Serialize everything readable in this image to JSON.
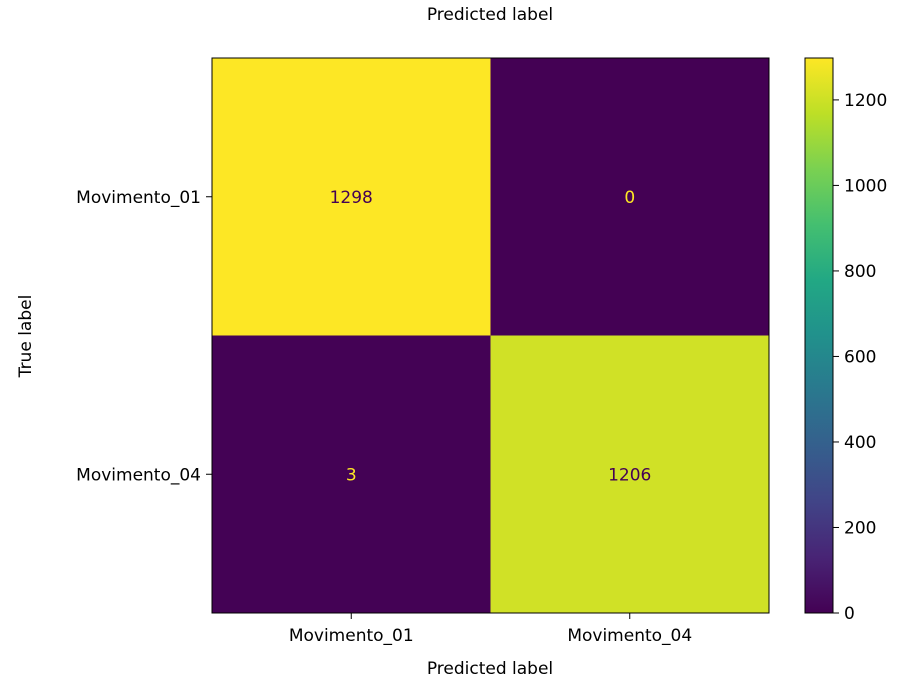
{
  "chart_data": {
    "type": "heatmap",
    "title": "Predicted label",
    "xlabel": "Predicted label",
    "ylabel": "True label",
    "x_categories": [
      "Movimento_01",
      "Movimento_04"
    ],
    "y_categories": [
      "Movimento_01",
      "Movimento_04"
    ],
    "values": [
      [
        1298,
        0
      ],
      [
        3,
        1206
      ]
    ],
    "colormap": "viridis",
    "colorbar": {
      "min": 0,
      "max": 1298,
      "ticks": [
        0,
        200,
        400,
        600,
        800,
        1000,
        1200
      ]
    },
    "text_color_dark_cell": "#fde725",
    "text_color_light_cell": "#440154",
    "grid": false
  }
}
